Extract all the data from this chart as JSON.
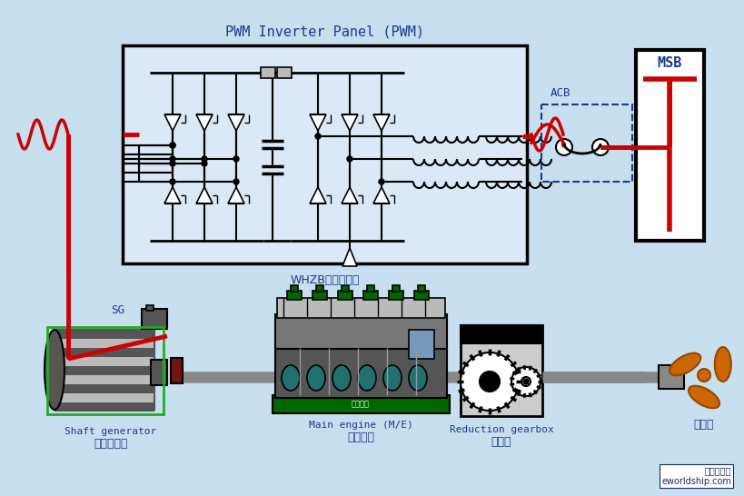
{
  "bg_color": "#c8dff0",
  "panel_label": "PWM Inverter Panel (PWM)",
  "panel_sublabel": "WHZB轴发控制箱",
  "msb_label": "MSB",
  "acb_label": "ACB",
  "sg_label": "SG",
  "shaft_gen_en": "Shaft generator",
  "shaft_gen_cn": "同步发电机",
  "main_engine_en": "Main engine (M/E)",
  "main_engine_cn": "主柴油机",
  "gearbox_en": "Reduction gearbox",
  "gearbox_cn": "齿轮箱",
  "propeller_cn": "螺旋桨",
  "red_color": "#cc0000",
  "blue_label_color": "#1a3a8a",
  "green_box_color": "#22aa22",
  "gray_color": "#888888",
  "dark_gray": "#555555",
  "mid_gray": "#777777",
  "light_gray": "#bbbbbb",
  "teal_color": "#207070",
  "orange_color": "#cc6600",
  "panel_fill": "#dce8f5",
  "black": "#000000",
  "white": "#ffffff"
}
